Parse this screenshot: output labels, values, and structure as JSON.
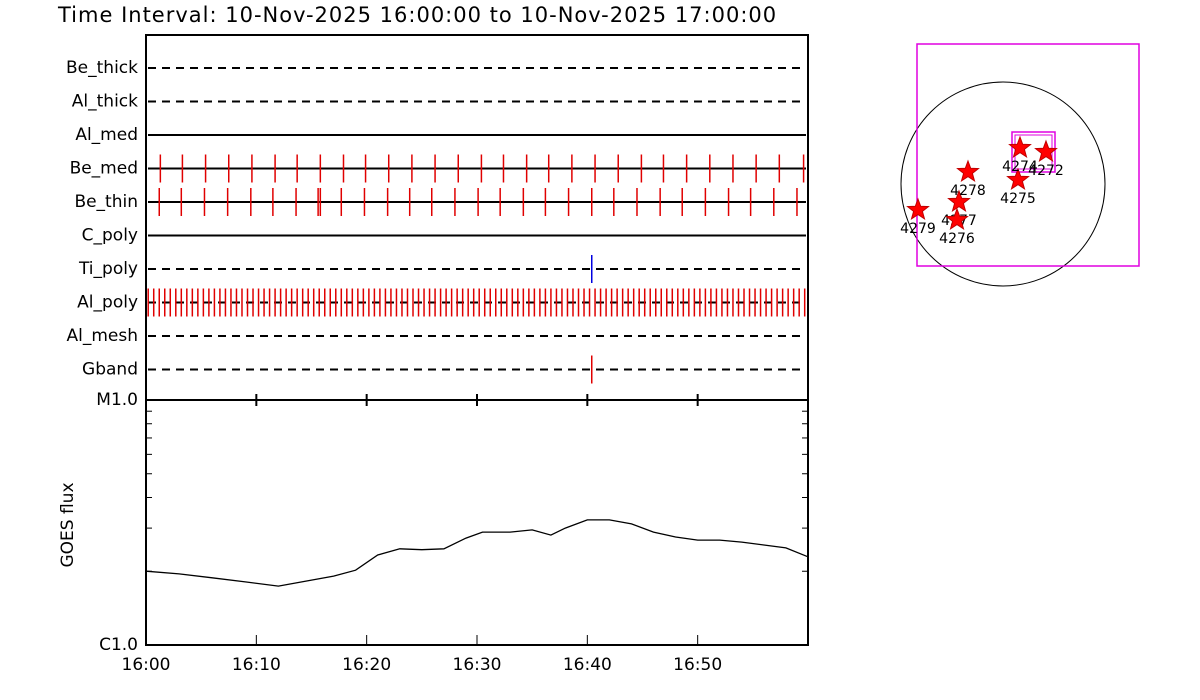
{
  "chart_data": [
    {
      "type": "event-timeline",
      "title": "Time Interval: 10-Nov-2025 16:00:00 to 10-Nov-2025 17:00:00",
      "xlim": [
        0,
        60
      ],
      "rows": [
        {
          "name": "Be_thick",
          "line": "dashed",
          "color": "#e00000",
          "times": []
        },
        {
          "name": "Al_thick",
          "line": "dashed",
          "color": "#e00000",
          "times": []
        },
        {
          "name": "Al_med",
          "line": "solid",
          "color": "#e00000",
          "times": []
        },
        {
          "name": "Be_med",
          "line": "solid",
          "color": "#e00000",
          "times": [
            1.3,
            3.3,
            5.4,
            7.5,
            9.6,
            11.7,
            13.7,
            15.8,
            17.9,
            19.9,
            22.0,
            24.1,
            26.2,
            28.3,
            30.4,
            32.4,
            34.5,
            36.5,
            38.6,
            40.7,
            42.8,
            44.9,
            46.9,
            49.0,
            51.1,
            53.2,
            55.3,
            57.4,
            59.6
          ]
        },
        {
          "name": "Be_thin",
          "line": "solid",
          "color": "#e00000",
          "times": [
            1.2,
            3.2,
            5.3,
            7.4,
            9.5,
            11.5,
            13.6,
            15.6,
            15.8,
            17.7,
            19.8,
            21.9,
            23.9,
            25.9,
            28.0,
            30.1,
            32.1,
            34.2,
            36.2,
            38.3,
            40.4,
            42.4,
            44.5,
            46.6,
            48.6,
            50.7,
            52.8,
            54.8,
            56.9,
            59.0
          ]
        },
        {
          "name": "C_poly",
          "line": "solid",
          "color": "#e00000",
          "times": []
        },
        {
          "name": "Ti_poly",
          "line": "dashed",
          "color": "#0000e0",
          "times": [
            40.4
          ]
        },
        {
          "name": "Al_poly",
          "line": "dashed",
          "color": "#e00000",
          "times": [
            0.2,
            0.7,
            1.2,
            1.7,
            2.2,
            2.7,
            3.2,
            3.7,
            4.2,
            4.7,
            5.2,
            5.7,
            6.2,
            6.7,
            7.2,
            7.7,
            8.2,
            8.7,
            9.2,
            9.7,
            10.2,
            10.7,
            11.2,
            11.7,
            12.2,
            12.7,
            13.2,
            13.7,
            14.2,
            14.7,
            15.2,
            15.7,
            16.2,
            16.7,
            17.2,
            17.7,
            18.2,
            18.7,
            19.2,
            19.7,
            20.2,
            20.7,
            21.2,
            21.7,
            22.2,
            22.7,
            23.2,
            23.7,
            24.2,
            24.7,
            25.2,
            25.7,
            26.2,
            26.7,
            27.2,
            27.7,
            28.2,
            28.7,
            29.2,
            29.7,
            30.2,
            30.7,
            31.2,
            31.7,
            32.2,
            32.7,
            33.2,
            33.7,
            34.2,
            34.7,
            35.2,
            35.7,
            36.2,
            36.7,
            37.2,
            37.7,
            38.2,
            38.7,
            39.2,
            39.7,
            40.2,
            40.7,
            41.2,
            41.7,
            42.2,
            42.7,
            43.2,
            43.7,
            44.2,
            44.7,
            45.2,
            45.7,
            46.2,
            46.7,
            47.2,
            47.7,
            48.2,
            48.7,
            49.2,
            49.7,
            50.2,
            50.7,
            51.2,
            51.7,
            52.2,
            52.7,
            53.2,
            53.7,
            54.2,
            54.7,
            55.2,
            55.7,
            56.2,
            56.7,
            57.2,
            57.7,
            58.2,
            58.7,
            59.2,
            59.7
          ]
        },
        {
          "name": "Al_mesh",
          "line": "dashed",
          "color": "#e00000",
          "times": []
        },
        {
          "name": "Gband",
          "line": "dashed",
          "color": "#e00000",
          "times": [
            40.4
          ]
        }
      ]
    },
    {
      "type": "line",
      "ylabel": "GOES flux",
      "log_y": true,
      "color": "#000000",
      "x": [
        0,
        3,
        6,
        9,
        12,
        15,
        17,
        19,
        21,
        23,
        25,
        27,
        29,
        30.5,
        33,
        35,
        36.7,
        38,
        40,
        42,
        44,
        46,
        48,
        50,
        52,
        54,
        56,
        58,
        60
      ],
      "values": [
        2e-06,
        1.95e-06,
        1.88e-06,
        1.81e-06,
        1.74e-06,
        1.84e-06,
        1.91e-06,
        2.02e-06,
        2.33e-06,
        2.47e-06,
        2.45e-06,
        2.47e-06,
        2.73e-06,
        2.89e-06,
        2.89e-06,
        2.95e-06,
        2.81e-06,
        3e-06,
        3.24e-06,
        3.24e-06,
        3.12e-06,
        2.89e-06,
        2.76e-06,
        2.68e-06,
        2.68e-06,
        2.63e-06,
        2.56e-06,
        2.49e-06,
        2.29e-06
      ],
      "xlim": [
        0,
        60
      ],
      "xticks": [
        {
          "value": 0,
          "label": "16:00"
        },
        {
          "value": 10,
          "label": "16:10"
        },
        {
          "value": 20,
          "label": "16:20"
        },
        {
          "value": 30,
          "label": "16:30"
        },
        {
          "value": 40,
          "label": "16:40"
        },
        {
          "value": 50,
          "label": "16:50"
        }
      ],
      "ylim": [
        1e-06,
        1e-05
      ],
      "yticks": [
        {
          "value": 1e-06,
          "label": "C1.0"
        },
        {
          "value": 1e-05,
          "label": "M1.0"
        }
      ]
    },
    {
      "type": "map",
      "regions": [
        "4279",
        "4277",
        "4276",
        "4278",
        "4275",
        "4274",
        "4272"
      ]
    }
  ]
}
